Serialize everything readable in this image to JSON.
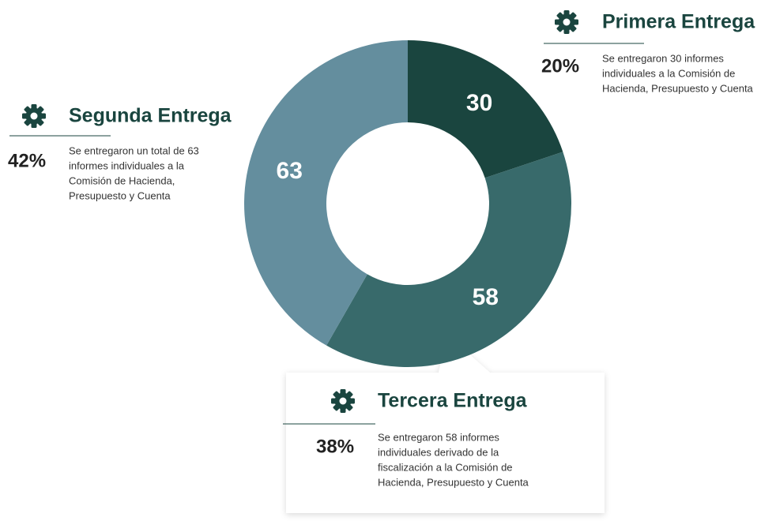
{
  "chart_data": {
    "type": "donut",
    "categories": [
      "Primera Entrega",
      "Tercera Entrega",
      "Segunda Entrega"
    ],
    "values": [
      30,
      58,
      63
    ],
    "colors": [
      "#1a453f",
      "#386a6b",
      "#648e9e"
    ],
    "percent_labels": [
      "20%",
      "38%",
      "42%"
    ],
    "descriptions": [
      [
        "Se entregaron 30 informes",
        "individuales a la Comisión de",
        "Hacienda, Presupuesto y Cuenta"
      ],
      [
        "Se entregaron 58 informes",
        "individuales derivado de la",
        "fiscalización a la Comisión de",
        "Hacienda, Presupuesto y Cuenta"
      ],
      [
        "Se entregaron un total de 63",
        "informes individuales a la",
        "Comisión de Hacienda,",
        "Presupuesto y Cuenta"
      ]
    ]
  }
}
